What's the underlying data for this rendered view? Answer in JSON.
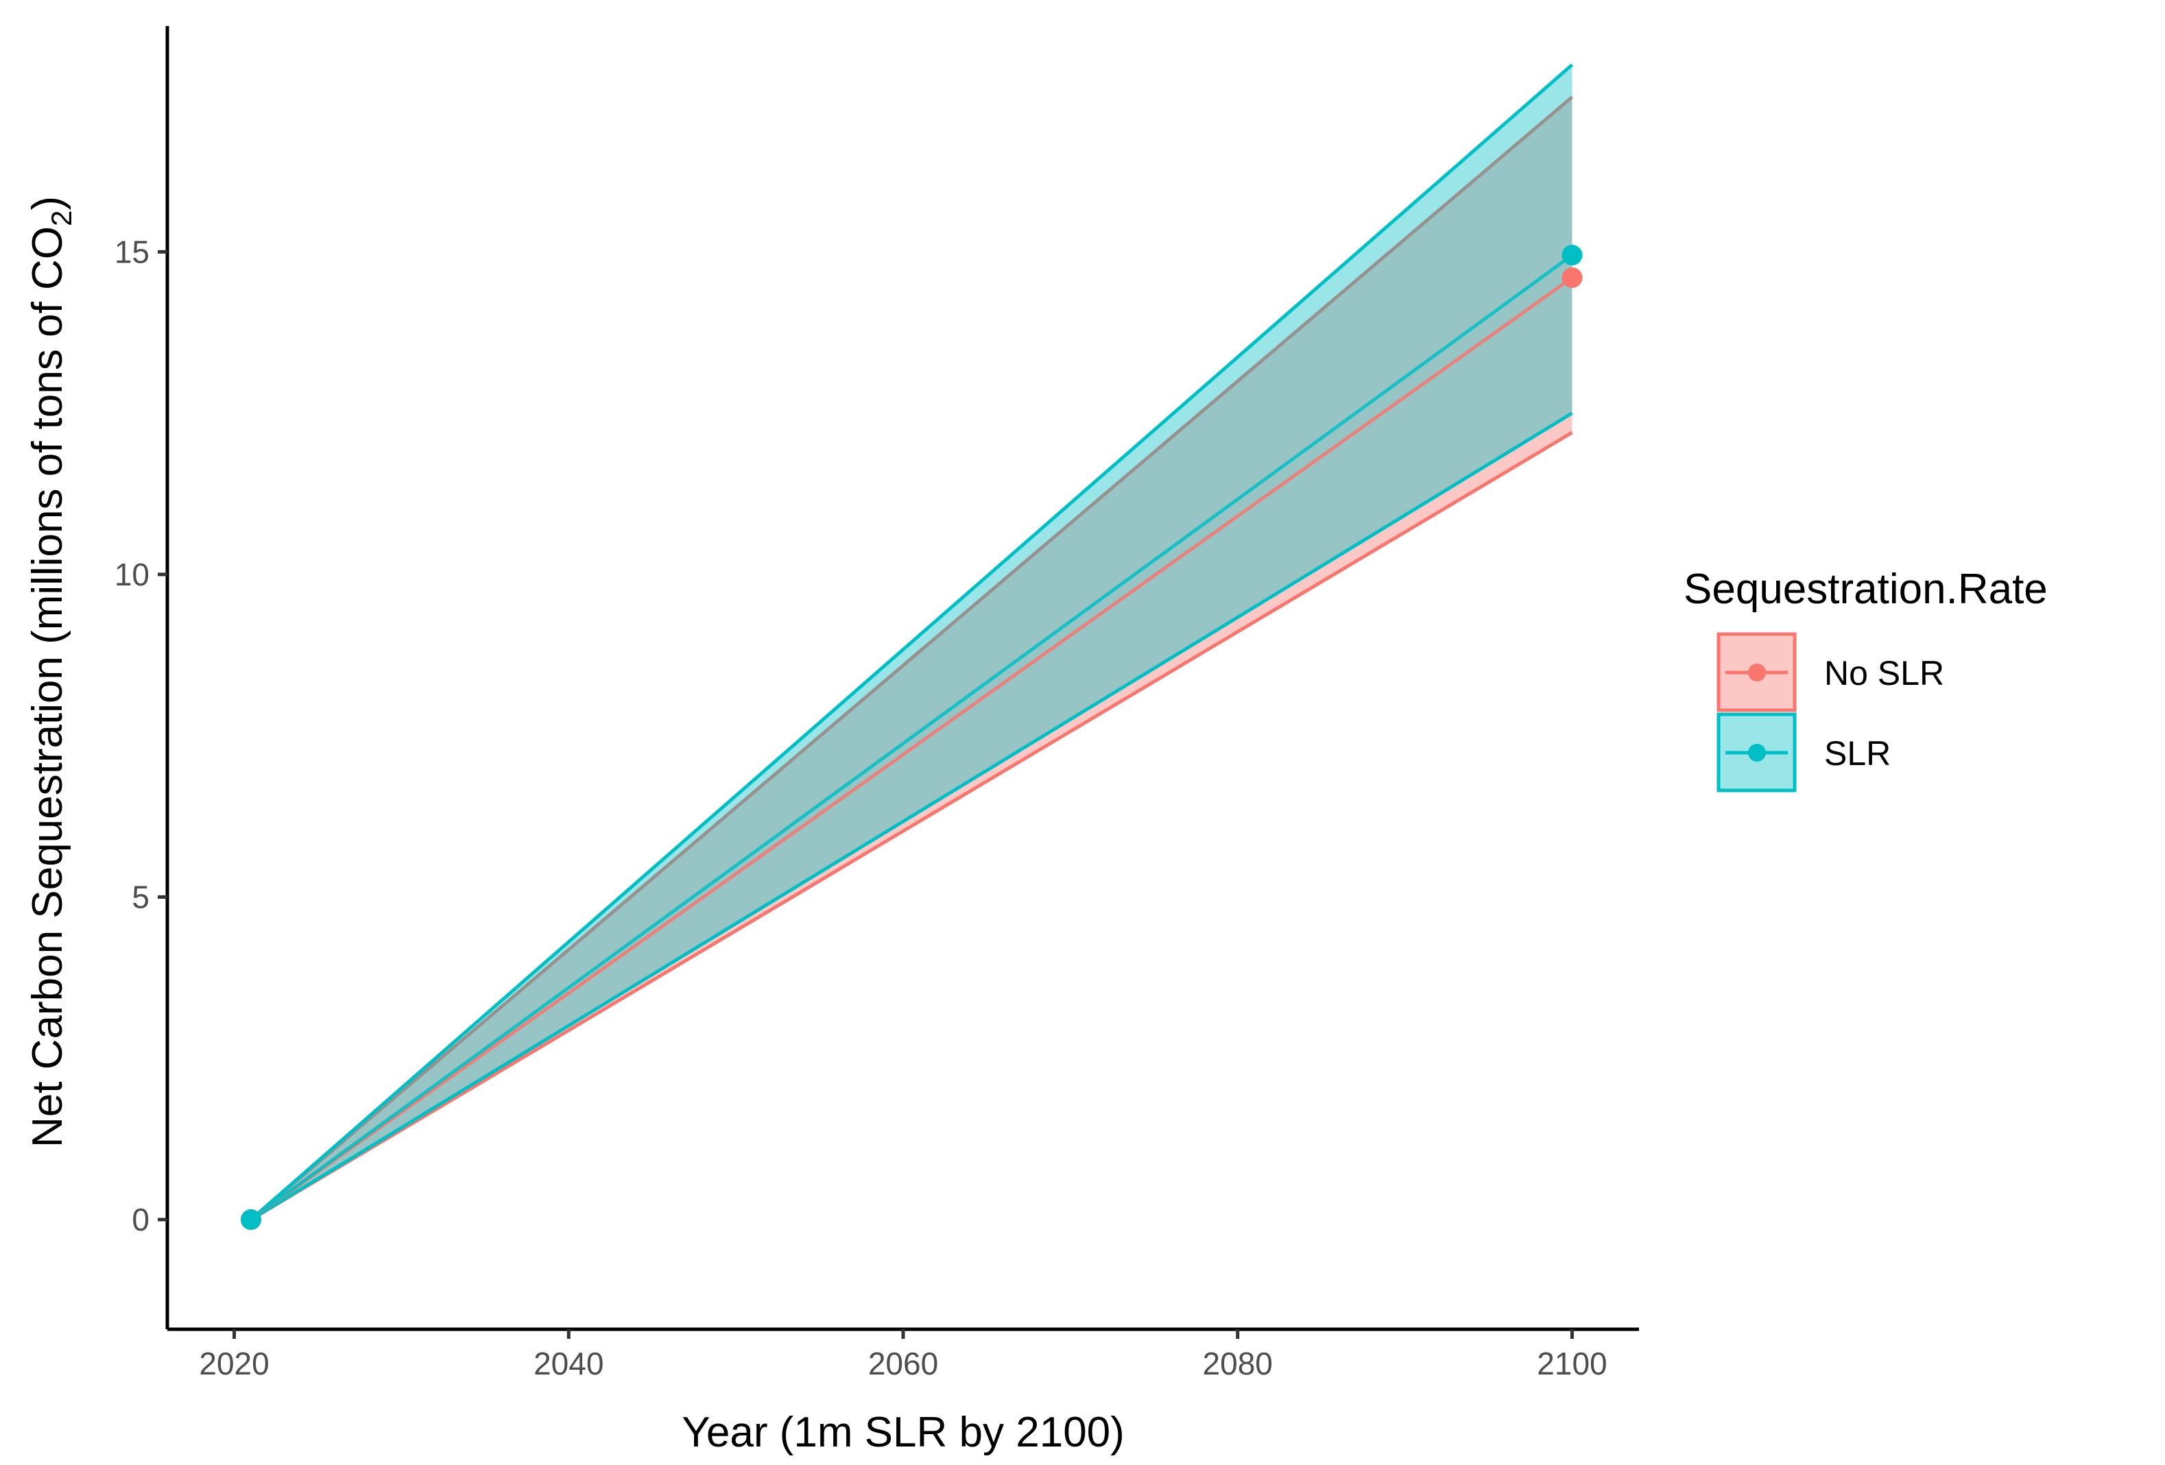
{
  "chart_data": {
    "type": "line",
    "x_label": "Year (1m SLR by 2100)",
    "y_label_main": "Net Carbon Sequestration (millions of tons of CO",
    "y_label_sub": "2",
    "y_label_end": ")",
    "xlim": [
      2016,
      2104
    ],
    "ylim": [
      -1.7,
      18.5
    ],
    "x_ticks": [
      2020,
      2040,
      2060,
      2080,
      2100
    ],
    "y_ticks": [
      0,
      5,
      10,
      15
    ],
    "x_tick_labels": [
      "2020",
      "2040",
      "2060",
      "2080",
      "2100"
    ],
    "y_tick_labels": [
      "0",
      "5",
      "10",
      "15"
    ],
    "grid": false,
    "legend": {
      "title": "Sequestration.Rate",
      "position": "right",
      "items": [
        "No SLR",
        "SLR"
      ]
    },
    "series": [
      {
        "name": "No SLR",
        "color": "#F8766D",
        "x": [
          2021,
          2100
        ],
        "y": [
          0,
          14.6
        ],
        "lower": [
          0,
          12.2
        ],
        "upper": [
          0,
          17.4
        ]
      },
      {
        "name": "SLR",
        "color": "#00BFC4",
        "x": [
          2021,
          2100
        ],
        "y": [
          0,
          14.95
        ],
        "lower": [
          0,
          12.5
        ],
        "upper": [
          0,
          17.9
        ]
      }
    ]
  }
}
